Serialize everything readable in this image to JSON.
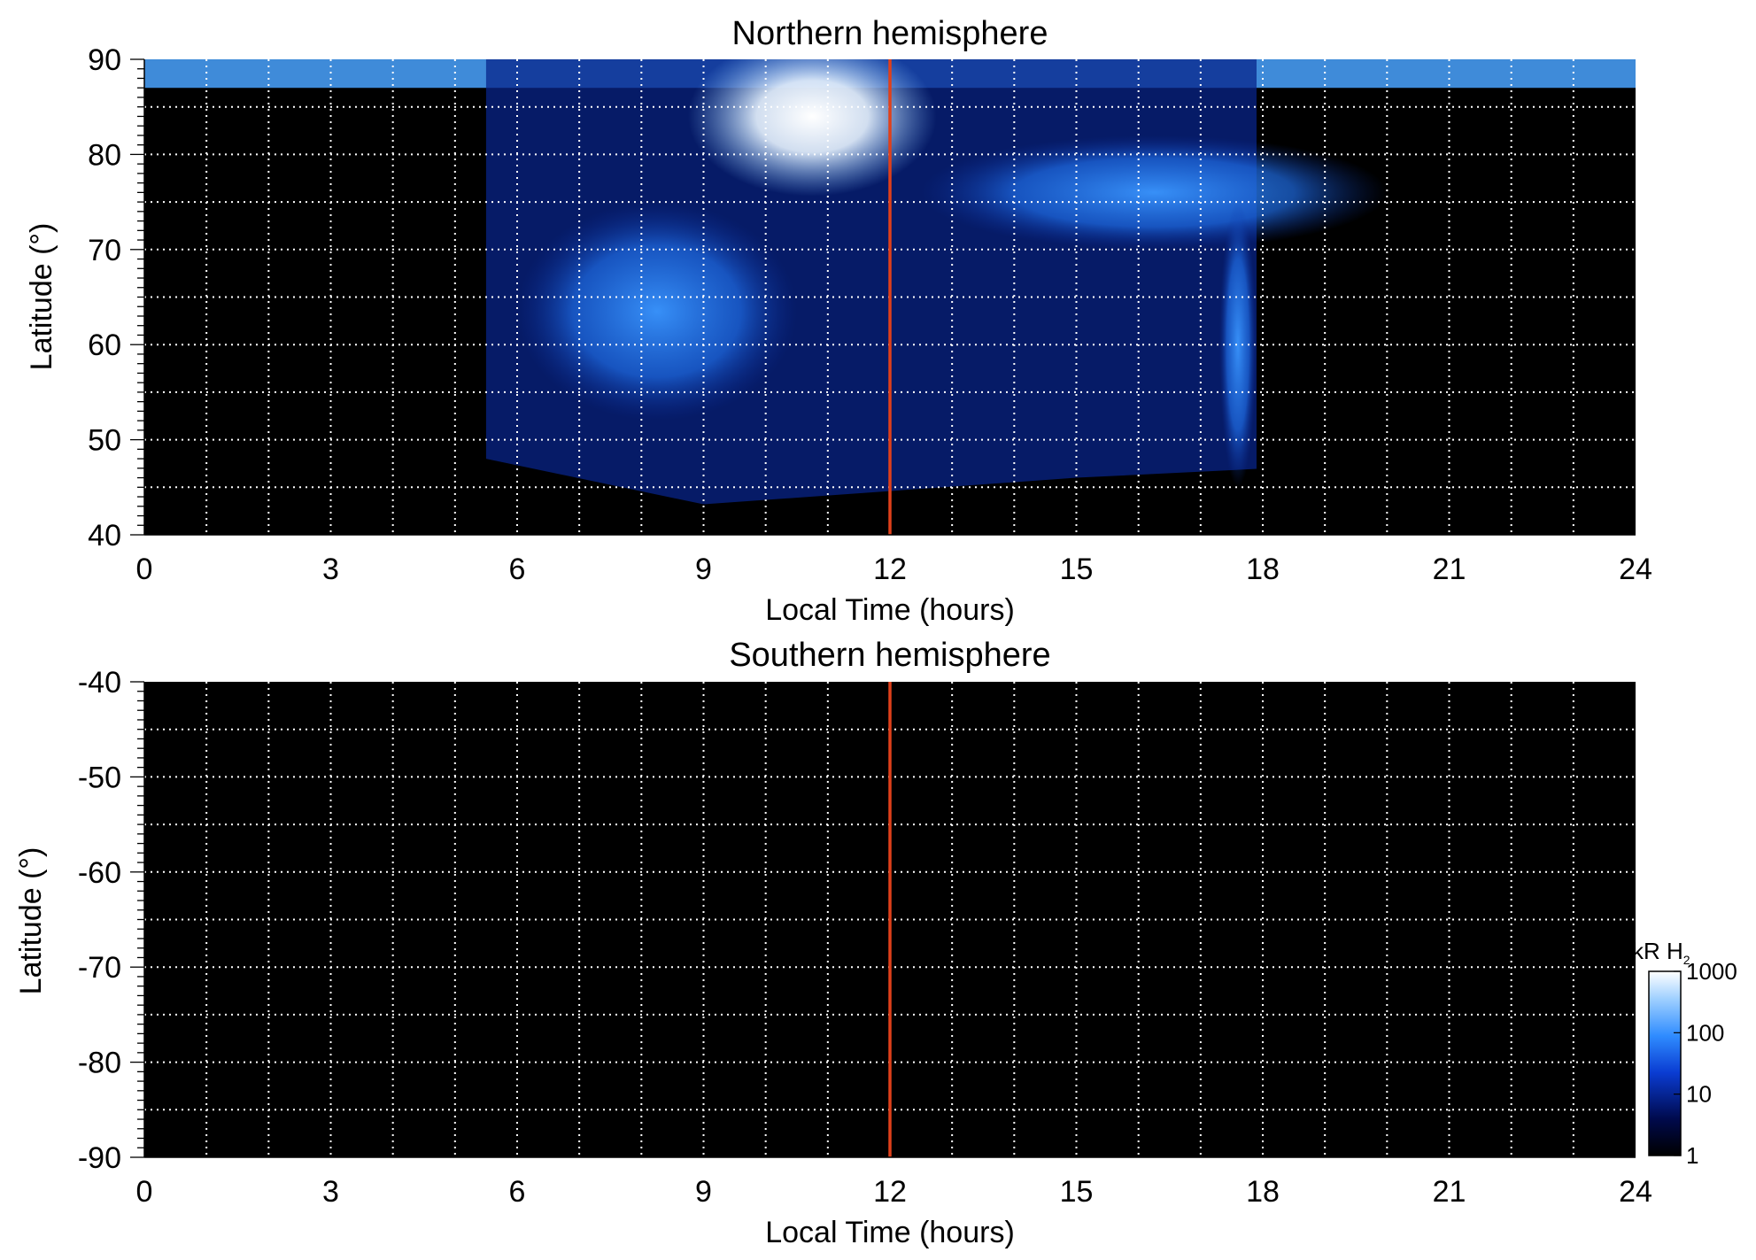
{
  "chart_data": [
    {
      "type": "heatmap",
      "title": "Northern hemisphere",
      "xlabel": "Local Time (hours)",
      "ylabel": "Latitude (°)",
      "xlim": [
        0,
        24
      ],
      "ylim": [
        40,
        90
      ],
      "xticks": [
        "0",
        "3",
        "6",
        "9",
        "12",
        "15",
        "18",
        "21",
        "24"
      ],
      "yticks": [
        "40",
        "50",
        "60",
        "70",
        "80",
        "90"
      ],
      "grid": true,
      "reference_line": {
        "x": 12,
        "color": "#e0401a"
      },
      "features": [
        {
          "name": "polar cap emission",
          "local_time": [
            0,
            24
          ],
          "latitude": [
            87,
            90
          ]
        },
        {
          "name": "dayside emission region",
          "local_time": [
            5.5,
            17.9
          ],
          "latitude": [
            46,
            90
          ]
        },
        {
          "name": "bright noon-sector aurora",
          "local_time": [
            9.5,
            12
          ],
          "latitude": [
            78,
            90
          ]
        },
        {
          "name": "dawn-sector arc",
          "local_time": [
            6,
            10.5
          ],
          "latitude": [
            52,
            75
          ]
        },
        {
          "name": "afternoon arc",
          "local_time": [
            12.5,
            20
          ],
          "latitude": [
            70,
            82
          ]
        },
        {
          "name": "dusk-sector band",
          "local_time": [
            17.3,
            17.9
          ],
          "latitude": [
            45,
            75
          ]
        }
      ]
    },
    {
      "type": "heatmap",
      "title": "Southern hemisphere",
      "xlabel": "Local Time (hours)",
      "ylabel": "Latitude (°)",
      "xlim": [
        0,
        24
      ],
      "ylim": [
        -90,
        -40
      ],
      "xticks": [
        "0",
        "3",
        "6",
        "9",
        "12",
        "15",
        "18",
        "21",
        "24"
      ],
      "yticks": [
        "-40",
        "-50",
        "-60",
        "-70",
        "-80",
        "-90"
      ],
      "grid": true,
      "reference_line": {
        "x": 12,
        "color": "#e0401a"
      },
      "features": []
    }
  ],
  "colorbar": {
    "label": "kR H",
    "label_subscript": "2",
    "scale": "log",
    "range": [
      1,
      1000
    ],
    "ticks": [
      "1",
      "10",
      "100",
      "1000"
    ],
    "colors": [
      "#000000",
      "#000a4d",
      "#0a3cd2",
      "#2f8cff",
      "#9fd0ff",
      "#ffffff"
    ]
  }
}
